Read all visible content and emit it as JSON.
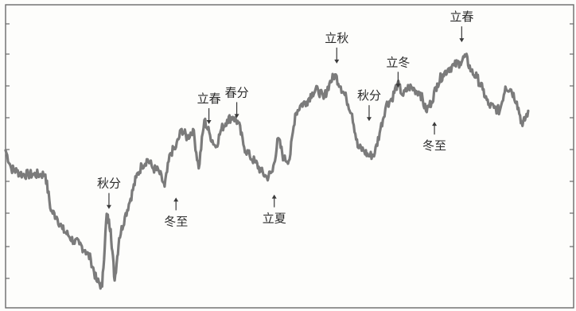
{
  "chart_data": {
    "type": "line",
    "title": "",
    "xlabel": "",
    "ylabel": "",
    "grid": false,
    "legend": "none",
    "xlim": [
      0,
      100
    ],
    "ylim": [
      0,
      10
    ],
    "series": [
      {
        "color": "#7b7b7b",
        "x": [
          0,
          1,
          2,
          3,
          4,
          5,
          6,
          7,
          8,
          9,
          10,
          11,
          12,
          13,
          14,
          15,
          16,
          17,
          17.8,
          18.5,
          19.2,
          20,
          21,
          22,
          23,
          24,
          25,
          26,
          27,
          28,
          29,
          30,
          31,
          32,
          33,
          34,
          35,
          36,
          37,
          38,
          39,
          40,
          41,
          42,
          43,
          44,
          45,
          46,
          47,
          48,
          49,
          50,
          51,
          52,
          53,
          54,
          55,
          56,
          57,
          58,
          59,
          60,
          61,
          62,
          63,
          64,
          65,
          66,
          67,
          68,
          69,
          70,
          71,
          72,
          73,
          74,
          75,
          76,
          77,
          78,
          79,
          80,
          81,
          82,
          83,
          84,
          85,
          86,
          87,
          88,
          89,
          90,
          91,
          92
        ],
        "y": [
          5.2,
          4.6,
          4.5,
          4.4,
          4.4,
          4.4,
          4.4,
          4.4,
          3.2,
          3.0,
          2.6,
          2.4,
          2.2,
          2.1,
          1.9,
          1.6,
          0.9,
          0.7,
          3.1,
          2.6,
          0.9,
          2.3,
          3.0,
          3.6,
          4.3,
          4.7,
          4.9,
          4.6,
          4.5,
          4.0,
          5.1,
          5.3,
          5.9,
          5.6,
          5.9,
          4.6,
          6.2,
          5.7,
          5.3,
          5.9,
          6.2,
          6.3,
          6.1,
          5.3,
          5.0,
          4.8,
          4.5,
          4.3,
          4.5,
          5.6,
          4.9,
          4.9,
          6.4,
          6.7,
          6.8,
          7.1,
          7.2,
          6.9,
          7.4,
          7.7,
          7.3,
          6.9,
          6.4,
          5.3,
          5.2,
          5.0,
          5.1,
          5.9,
          6.7,
          6.9,
          7.4,
          7.0,
          7.3,
          7.2,
          7.1,
          6.5,
          6.8,
          7.4,
          7.7,
          7.9,
          8.0,
          8.1,
          8.3,
          7.8,
          7.6,
          7.2,
          6.7,
          6.6,
          6.5,
          7.3,
          7.2,
          6.8,
          6.0,
          6.5
        ]
      }
    ],
    "annotations": [
      {
        "label": "秋分",
        "x": 18.2,
        "y": 3.0,
        "placement": "above"
      },
      {
        "label": "冬至",
        "x": 30.0,
        "y": 3.9,
        "placement": "below"
      },
      {
        "label": "立春",
        "x": 35.8,
        "y": 5.8,
        "placement": "above"
      },
      {
        "label": "春分",
        "x": 40.7,
        "y": 6.0,
        "placement": "above"
      },
      {
        "label": "立夏",
        "x": 47.3,
        "y": 4.0,
        "placement": "below"
      },
      {
        "label": "立秋",
        "x": 58.3,
        "y": 7.8,
        "placement": "above"
      },
      {
        "label": "秋分",
        "x": 64.0,
        "y": 5.9,
        "placement": "above"
      },
      {
        "label": "立冬",
        "x": 69.1,
        "y": 7.0,
        "placement": "above"
      },
      {
        "label": "冬至",
        "x": 75.5,
        "y": 6.4,
        "placement": "below"
      },
      {
        "label": "立春",
        "x": 80.3,
        "y": 8.5,
        "placement": "above"
      }
    ]
  }
}
